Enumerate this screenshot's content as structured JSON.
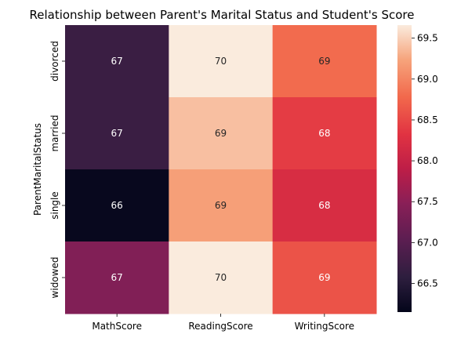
{
  "chart_data": {
    "type": "heatmap",
    "title": "Relationship between Parent's Marital Status and Student's Score",
    "ylabel": "ParentMaritalStatus",
    "xlabel": "",
    "columns": [
      "MathScore",
      "ReadingScore",
      "WritingScore"
    ],
    "rows": [
      "divorced",
      "married",
      "single",
      "widowed"
    ],
    "values": [
      [
        66.7,
        69.7,
        68.8
      ],
      [
        66.7,
        69.4,
        68.4
      ],
      [
        66.2,
        69.2,
        68.2
      ],
      [
        67.4,
        69.7,
        68.6
      ]
    ],
    "annotations": [
      [
        "67",
        "70",
        "69"
      ],
      [
        "67",
        "69",
        "68"
      ],
      [
        "66",
        "69",
        "68"
      ],
      [
        "67",
        "70",
        "69"
      ]
    ],
    "colorbar": {
      "min": 66.15,
      "max": 69.66,
      "ticks": [
        "66.5",
        "67.0",
        "67.5",
        "68.0",
        "68.5",
        "69.0",
        "69.5"
      ]
    },
    "colormap": "rocket"
  }
}
